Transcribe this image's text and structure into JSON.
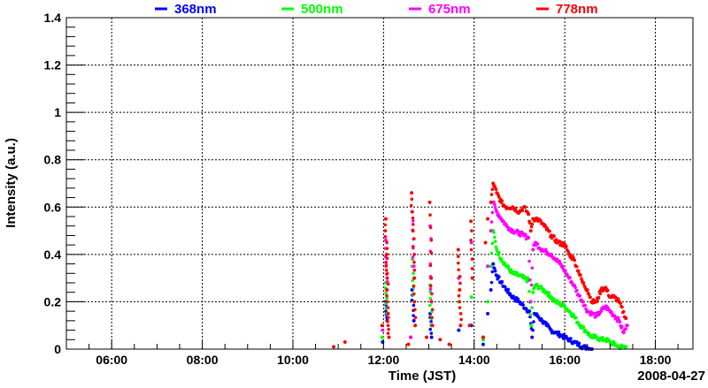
{
  "chart_data": {
    "type": "scatter",
    "title": "",
    "xlabel": "Time (JST)",
    "ylabel": "Intensity (a.u.)",
    "date_label": "2008-04-27",
    "xlim": [
      5.0,
      18.83
    ],
    "ylim": [
      0,
      1.4
    ],
    "grid": true,
    "legend_placement": "top",
    "x_ticks": [
      {
        "v": 6,
        "label": "06:00"
      },
      {
        "v": 8,
        "label": "08:00"
      },
      {
        "v": 10,
        "label": "10:00"
      },
      {
        "v": 12,
        "label": "12:00"
      },
      {
        "v": 14,
        "label": "14:00"
      },
      {
        "v": 16,
        "label": "16:00"
      },
      {
        "v": 18,
        "label": "18:00"
      }
    ],
    "y_ticks": [
      {
        "v": 0,
        "label": "0"
      },
      {
        "v": 0.2,
        "label": "0.2"
      },
      {
        "v": 0.4,
        "label": "0.4"
      },
      {
        "v": 0.6,
        "label": "0.6"
      },
      {
        "v": 0.8,
        "label": "0.8"
      },
      {
        "v": 1.0,
        "label": "1"
      },
      {
        "v": 1.2,
        "label": "1.2"
      },
      {
        "v": 1.4,
        "label": "1.4"
      }
    ],
    "series": [
      {
        "name": "368nm",
        "color": "#0000ff",
        "points": [
          [
            11.98,
            0.03
          ],
          [
            12.05,
            0.2
          ],
          [
            12.08,
            0.12
          ],
          [
            12.6,
            0.05
          ],
          [
            12.63,
            0.25
          ],
          [
            12.67,
            0.12
          ],
          [
            13.03,
            0.15
          ],
          [
            13.06,
            0.05
          ],
          [
            13.66,
            0.08
          ],
          [
            13.94,
            0.1
          ],
          [
            14.2,
            0.02
          ],
          [
            14.3,
            0.15
          ],
          [
            14.37,
            0.25
          ],
          [
            14.42,
            0.36
          ],
          [
            14.5,
            0.31
          ],
          [
            14.6,
            0.28
          ],
          [
            14.72,
            0.25
          ],
          [
            14.85,
            0.22
          ],
          [
            15.0,
            0.2
          ],
          [
            15.15,
            0.17
          ],
          [
            15.22,
            0.16
          ],
          [
            15.28,
            0.05
          ],
          [
            15.33,
            0.15
          ],
          [
            15.4,
            0.14
          ],
          [
            15.5,
            0.12
          ],
          [
            15.6,
            0.1
          ],
          [
            15.7,
            0.08
          ],
          [
            15.8,
            0.07
          ],
          [
            15.9,
            0.06
          ],
          [
            16.0,
            0.05
          ],
          [
            16.1,
            0.04
          ],
          [
            16.2,
            0.03
          ],
          [
            16.3,
            0.02
          ],
          [
            16.4,
            0.01
          ],
          [
            16.5,
            0.005
          ],
          [
            16.6,
            0.0
          ]
        ]
      },
      {
        "name": "500nm",
        "color": "#00ff00",
        "points": [
          [
            11.97,
            0.05
          ],
          [
            12.05,
            0.28
          ],
          [
            12.08,
            0.15
          ],
          [
            12.6,
            0.05
          ],
          [
            12.64,
            0.38
          ],
          [
            12.68,
            0.2
          ],
          [
            13.03,
            0.27
          ],
          [
            13.06,
            0.1
          ],
          [
            13.66,
            0.2
          ],
          [
            13.94,
            0.22
          ],
          [
            14.2,
            0.04
          ],
          [
            14.3,
            0.2
          ],
          [
            14.37,
            0.35
          ],
          [
            14.42,
            0.5
          ],
          [
            14.5,
            0.42
          ],
          [
            14.6,
            0.38
          ],
          [
            14.72,
            0.35
          ],
          [
            14.85,
            0.32
          ],
          [
            15.0,
            0.31
          ],
          [
            15.1,
            0.3
          ],
          [
            15.2,
            0.29
          ],
          [
            15.26,
            0.1
          ],
          [
            15.3,
            0.24
          ],
          [
            15.35,
            0.27
          ],
          [
            15.45,
            0.26
          ],
          [
            15.6,
            0.24
          ],
          [
            15.7,
            0.22
          ],
          [
            15.8,
            0.2
          ],
          [
            15.9,
            0.19
          ],
          [
            16.0,
            0.18
          ],
          [
            16.1,
            0.16
          ],
          [
            16.2,
            0.14
          ],
          [
            16.3,
            0.11
          ],
          [
            16.4,
            0.09
          ],
          [
            16.5,
            0.07
          ],
          [
            16.6,
            0.05
          ],
          [
            16.7,
            0.05
          ],
          [
            16.8,
            0.04
          ],
          [
            16.9,
            0.04
          ],
          [
            17.0,
            0.03
          ],
          [
            17.1,
            0.02
          ],
          [
            17.2,
            0.01
          ],
          [
            17.35,
            0.01
          ]
        ]
      },
      {
        "name": "675nm",
        "color": "#ff00ff",
        "points": [
          [
            11.98,
            0.08
          ],
          [
            12.05,
            0.46
          ],
          [
            12.08,
            0.25
          ],
          [
            12.6,
            0.05
          ],
          [
            12.63,
            0.58
          ],
          [
            12.67,
            0.35
          ],
          [
            13.03,
            0.52
          ],
          [
            13.06,
            0.2
          ],
          [
            13.66,
            0.3
          ],
          [
            13.94,
            0.45
          ],
          [
            14.2,
            0.05
          ],
          [
            14.3,
            0.35
          ],
          [
            14.37,
            0.5
          ],
          [
            14.42,
            0.62
          ],
          [
            14.5,
            0.58
          ],
          [
            14.6,
            0.55
          ],
          [
            14.72,
            0.52
          ],
          [
            14.85,
            0.5
          ],
          [
            15.0,
            0.49
          ],
          [
            15.1,
            0.48
          ],
          [
            15.2,
            0.47
          ],
          [
            15.25,
            0.2
          ],
          [
            15.3,
            0.42
          ],
          [
            15.35,
            0.45
          ],
          [
            15.5,
            0.42
          ],
          [
            15.6,
            0.41
          ],
          [
            15.7,
            0.4
          ],
          [
            15.8,
            0.38
          ],
          [
            15.9,
            0.36
          ],
          [
            16.0,
            0.33
          ],
          [
            16.1,
            0.3
          ],
          [
            16.2,
            0.27
          ],
          [
            16.3,
            0.23
          ],
          [
            16.4,
            0.2
          ],
          [
            16.5,
            0.16
          ],
          [
            16.6,
            0.15
          ],
          [
            16.7,
            0.14
          ],
          [
            16.8,
            0.16
          ],
          [
            16.9,
            0.18
          ],
          [
            17.0,
            0.16
          ],
          [
            17.1,
            0.14
          ],
          [
            17.2,
            0.12
          ],
          [
            17.3,
            0.07
          ],
          [
            17.38,
            0.1
          ]
        ]
      },
      {
        "name": "778nm",
        "color": "#ff0000",
        "points": [
          [
            10.9,
            0.01
          ],
          [
            11.15,
            0.03
          ],
          [
            11.97,
            0.1
          ],
          [
            12.05,
            0.55
          ],
          [
            12.07,
            0.4
          ],
          [
            12.08,
            0.3
          ],
          [
            12.1,
            0.15
          ],
          [
            12.12,
            0.05
          ],
          [
            12.55,
            0.02
          ],
          [
            12.62,
            0.66
          ],
          [
            12.65,
            0.5
          ],
          [
            12.68,
            0.3
          ],
          [
            12.7,
            0.1
          ],
          [
            12.95,
            0.05
          ],
          [
            13.02,
            0.62
          ],
          [
            13.05,
            0.3
          ],
          [
            13.08,
            0.1
          ],
          [
            13.25,
            0.04
          ],
          [
            13.45,
            0.02
          ],
          [
            13.65,
            0.42
          ],
          [
            13.68,
            0.25
          ],
          [
            13.7,
            0.1
          ],
          [
            13.9,
            0.1
          ],
          [
            13.93,
            0.54
          ],
          [
            13.96,
            0.3
          ],
          [
            14.2,
            0.05
          ],
          [
            14.25,
            0.45
          ],
          [
            14.3,
            0.55
          ],
          [
            14.37,
            0.62
          ],
          [
            14.42,
            0.7
          ],
          [
            14.5,
            0.66
          ],
          [
            14.6,
            0.62
          ],
          [
            14.7,
            0.6
          ],
          [
            14.85,
            0.6
          ],
          [
            15.0,
            0.58
          ],
          [
            15.1,
            0.6
          ],
          [
            15.2,
            0.57
          ],
          [
            15.25,
            0.5
          ],
          [
            15.3,
            0.55
          ],
          [
            15.4,
            0.55
          ],
          [
            15.55,
            0.52
          ],
          [
            15.7,
            0.48
          ],
          [
            15.85,
            0.45
          ],
          [
            16.0,
            0.44
          ],
          [
            16.1,
            0.4
          ],
          [
            16.2,
            0.38
          ],
          [
            16.3,
            0.33
          ],
          [
            16.4,
            0.28
          ],
          [
            16.5,
            0.25
          ],
          [
            16.6,
            0.2
          ],
          [
            16.7,
            0.2
          ],
          [
            16.8,
            0.25
          ],
          [
            16.9,
            0.26
          ],
          [
            17.0,
            0.22
          ],
          [
            17.1,
            0.22
          ],
          [
            17.2,
            0.2
          ],
          [
            17.35,
            0.13
          ]
        ]
      }
    ]
  }
}
